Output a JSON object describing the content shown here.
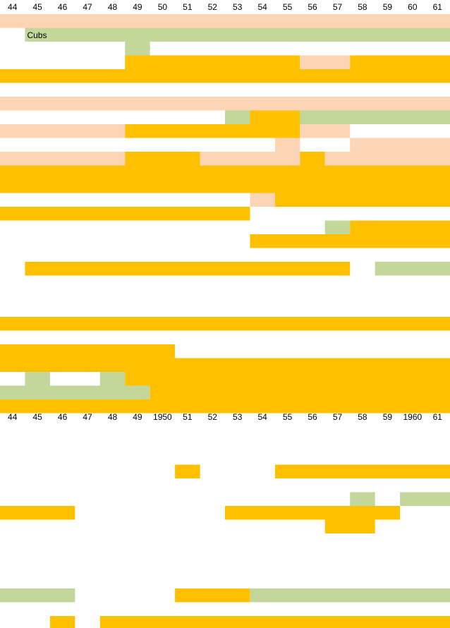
{
  "chart_data": {
    "type": "heatmap",
    "title": "",
    "x_ticks_top": [
      "44",
      "45",
      "46",
      "47",
      "48",
      "49",
      "50",
      "51",
      "52",
      "53",
      "54",
      "55",
      "56",
      "57",
      "58",
      "59",
      "60",
      "61"
    ],
    "x_ticks_mid": [
      "44",
      "45",
      "46",
      "47",
      "48",
      "49",
      "1950",
      "51",
      "52",
      "53",
      "54",
      "55",
      "56",
      "57",
      "58",
      "59",
      "1960",
      "61"
    ],
    "years": [
      1944,
      1945,
      1946,
      1947,
      1948,
      1949,
      1950,
      1951,
      1952,
      1953,
      1954,
      1955,
      1956,
      1957,
      1958,
      1959,
      1960,
      1961
    ],
    "colors": {
      "orange": "#FFC000",
      "peach": "#FBD5B5",
      "green": "#C4D79B",
      "blank": "#FFFFFF"
    },
    "rows": [
      {
        "segments": [
          {
            "from": 1944,
            "to": 1961,
            "color": "peach"
          }
        ]
      },
      {
        "label": "Cubs",
        "segments": [
          {
            "from": 1945,
            "to": 1961,
            "color": "green"
          }
        ]
      },
      {
        "segments": [
          {
            "from": 1949,
            "to": 1949,
            "color": "green"
          }
        ]
      },
      {
        "segments": [
          {
            "from": 1949,
            "to": 1955,
            "color": "orange"
          },
          {
            "from": 1956,
            "to": 1957,
            "color": "peach"
          },
          {
            "from": 1958,
            "to": 1961,
            "color": "orange"
          }
        ]
      },
      {
        "segments": [
          {
            "from": 1944,
            "to": 1961,
            "color": "orange"
          }
        ]
      },
      {
        "segments": []
      },
      {
        "segments": [
          {
            "from": 1944,
            "to": 1961,
            "color": "peach"
          }
        ]
      },
      {
        "segments": [
          {
            "from": 1953,
            "to": 1953,
            "color": "green"
          },
          {
            "from": 1954,
            "to": 1955,
            "color": "orange"
          },
          {
            "from": 1956,
            "to": 1961,
            "color": "green"
          }
        ]
      },
      {
        "segments": [
          {
            "from": 1944,
            "to": 1948,
            "color": "peach"
          },
          {
            "from": 1949,
            "to": 1955,
            "color": "orange"
          },
          {
            "from": 1956,
            "to": 1957,
            "color": "peach"
          }
        ]
      },
      {
        "segments": [
          {
            "from": 1955,
            "to": 1955,
            "color": "peach"
          },
          {
            "from": 1958,
            "to": 1961,
            "color": "peach"
          }
        ]
      },
      {
        "segments": [
          {
            "from": 1944,
            "to": 1948,
            "color": "peach"
          },
          {
            "from": 1949,
            "to": 1951,
            "color": "orange"
          },
          {
            "from": 1952,
            "to": 1955,
            "color": "peach"
          },
          {
            "from": 1956,
            "to": 1956,
            "color": "orange"
          },
          {
            "from": 1957,
            "to": 1961,
            "color": "peach"
          }
        ]
      },
      {
        "segments": [
          {
            "from": 1944,
            "to": 1961,
            "color": "orange"
          }
        ]
      },
      {
        "segments": [
          {
            "from": 1944,
            "to": 1961,
            "color": "orange"
          }
        ]
      },
      {
        "segments": [
          {
            "from": 1954,
            "to": 1954,
            "color": "peach"
          },
          {
            "from": 1955,
            "to": 1961,
            "color": "orange"
          }
        ]
      },
      {
        "segments": [
          {
            "from": 1944,
            "to": 1953,
            "color": "orange"
          }
        ]
      },
      {
        "segments": [
          {
            "from": 1957,
            "to": 1957,
            "color": "green"
          },
          {
            "from": 1958,
            "to": 1961,
            "color": "orange"
          }
        ]
      },
      {
        "segments": [
          {
            "from": 1954,
            "to": 1961,
            "color": "orange"
          }
        ]
      },
      {
        "segments": []
      },
      {
        "segments": [
          {
            "from": 1945,
            "to": 1957,
            "color": "orange"
          },
          {
            "from": 1959,
            "to": 1961,
            "color": "green"
          }
        ]
      },
      {
        "segments": []
      },
      {
        "segments": []
      },
      {
        "segments": []
      },
      {
        "segments": [
          {
            "from": 1944,
            "to": 1961,
            "color": "orange"
          }
        ]
      },
      {
        "segments": []
      },
      {
        "segments": [
          {
            "from": 1944,
            "to": 1950,
            "color": "orange"
          }
        ]
      },
      {
        "segments": [
          {
            "from": 1944,
            "to": 1961,
            "color": "orange"
          }
        ]
      },
      {
        "segments": [
          {
            "from": 1945,
            "to": 1945,
            "color": "green"
          },
          {
            "from": 1948,
            "to": 1948,
            "color": "green"
          },
          {
            "from": 1949,
            "to": 1961,
            "color": "orange"
          }
        ]
      },
      {
        "segments": [
          {
            "from": 1944,
            "to": 1949,
            "color": "green"
          },
          {
            "from": 1950,
            "to": 1961,
            "color": "orange"
          }
        ]
      },
      {
        "segments": [
          {
            "from": 1944,
            "to": 1961,
            "color": "orange"
          }
        ]
      },
      {
        "segments": []
      },
      {
        "segments": []
      },
      {
        "segments": []
      },
      {
        "segments": [
          {
            "from": 1951,
            "to": 1951,
            "color": "orange"
          },
          {
            "from": 1955,
            "to": 1961,
            "color": "orange"
          }
        ]
      },
      {
        "segments": []
      },
      {
        "segments": [
          {
            "from": 1958,
            "to": 1958,
            "color": "green"
          },
          {
            "from": 1960,
            "to": 1961,
            "color": "green"
          }
        ]
      },
      {
        "segments": [
          {
            "from": 1944,
            "to": 1946,
            "color": "orange"
          },
          {
            "from": 1953,
            "to": 1959,
            "color": "orange"
          }
        ]
      },
      {
        "segments": [
          {
            "from": 1957,
            "to": 1958,
            "color": "orange"
          }
        ]
      },
      {
        "segments": []
      },
      {
        "segments": []
      },
      {
        "segments": []
      },
      {
        "segments": []
      },
      {
        "segments": [
          {
            "from": 1944,
            "to": 1946,
            "color": "green"
          },
          {
            "from": 1951,
            "to": 1953,
            "color": "orange"
          },
          {
            "from": 1954,
            "to": 1961,
            "color": "green"
          }
        ]
      },
      {
        "segments": []
      },
      {
        "segments": [
          {
            "from": 1946,
            "to": 1946,
            "color": "orange"
          },
          {
            "from": 1948,
            "to": 1961,
            "color": "orange"
          }
        ]
      }
    ]
  }
}
